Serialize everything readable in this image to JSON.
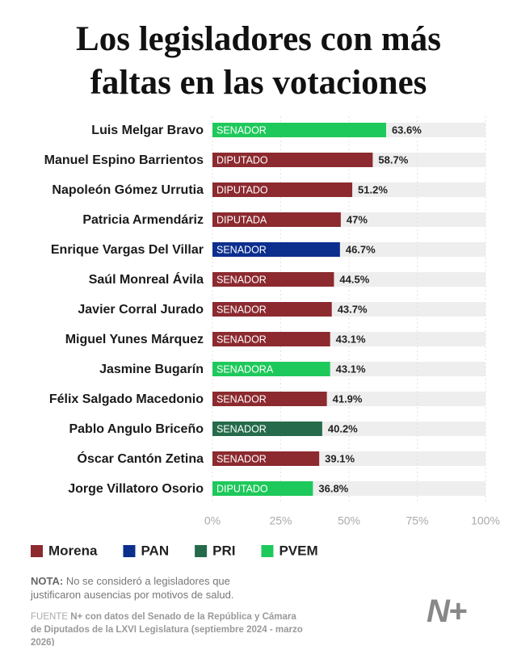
{
  "chart_data": {
    "type": "bar",
    "title": "Los legisladores con más faltas en las votaciones",
    "categories": [
      "Luis Melgar Bravo",
      "Manuel Espino Barrientos",
      "Napoleón Gómez Urrutia",
      "Patricia Armendáriz",
      "Enrique Vargas Del Villar",
      "Saúl Monreal Ávila",
      "Javier Corral Jurado",
      "Miguel Yunes Márquez",
      "Jasmine Bugarín",
      "Félix Salgado Macedonio",
      "Pablo Angulo Briceño",
      "Óscar Cantón Zetina",
      "Jorge Villatoro Osorio"
    ],
    "values": [
      63.6,
      58.7,
      51.2,
      47,
      46.7,
      44.5,
      43.7,
      43.1,
      43.1,
      41.9,
      40.2,
      39.1,
      36.8
    ],
    "value_labels": [
      "63.6%",
      "58.7%",
      "51.2%",
      "47%",
      "46.7%",
      "44.5%",
      "43.7%",
      "43.1%",
      "43.1%",
      "41.9%",
      "40.2%",
      "39.1%",
      "36.8%"
    ],
    "bar_labels": [
      "SENADOR",
      "DIPUTADO",
      "DIPUTADO",
      "DIPUTADA",
      "SENADOR",
      "SENADOR",
      "SENADOR",
      "SENADOR",
      "SENADORA",
      "SENADOR",
      "SENADOR",
      "SENADOR",
      "DIPUTADO"
    ],
    "colors": [
      "#1ec95b",
      "#8c2a2f",
      "#8c2a2f",
      "#8c2a2f",
      "#0c2f8e",
      "#8c2a2f",
      "#8c2a2f",
      "#8c2a2f",
      "#1ec95b",
      "#8c2a2f",
      "#256b4b",
      "#8c2a2f",
      "#1ec95b"
    ],
    "xlim": [
      0,
      100
    ],
    "xticks": [
      {
        "value": 0,
        "label": "0%"
      },
      {
        "value": 25,
        "label": "25%"
      },
      {
        "value": 50,
        "label": "50%"
      },
      {
        "value": 75,
        "label": "75%"
      },
      {
        "value": 100,
        "label": "100%"
      }
    ],
    "legend": [
      {
        "name": "Morena",
        "color": "#8c2a2f"
      },
      {
        "name": "PAN",
        "color": "#0c2f8e"
      },
      {
        "name": "PRI",
        "color": "#256b4b"
      },
      {
        "name": "PVEM",
        "color": "#1ec95b"
      }
    ]
  },
  "note": {
    "label": "NOTA:",
    "text": "No se consideró a legisladores que justificaron ausencias por motivos de salud."
  },
  "source": {
    "label": "FUENTE",
    "text": "N+ con datos del Senado de la República y Cámara de Diputados de la LXVI Legislatura (septiembre 2024 - marzo 2026)"
  },
  "logo": "N+"
}
